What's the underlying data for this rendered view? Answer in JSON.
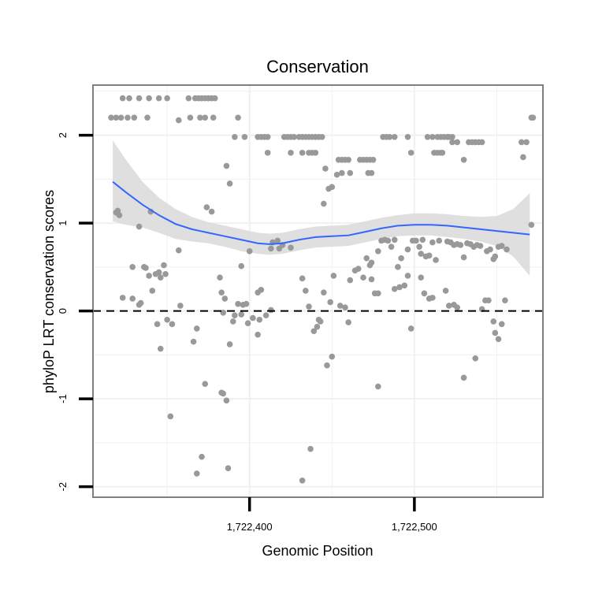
{
  "chart_data": {
    "type": "scatter",
    "title": "Conservation",
    "xlabel": "Genomic Position",
    "ylabel": "phyloP LRT conservation scores",
    "xlim": [
      1722305,
      1722578
    ],
    "ylim": [
      -2.12,
      2.57
    ],
    "x_ticks": [
      1722400,
      1722500
    ],
    "x_tick_labels": [
      "1,722,400",
      "1,722,500"
    ],
    "y_ticks": [
      -2,
      -1,
      0,
      1,
      2
    ],
    "y_tick_labels": [
      "-2",
      "-1",
      "0",
      "1",
      "2"
    ],
    "grid": true,
    "reference_line": {
      "y": 0,
      "style": "dashed"
    },
    "colors": {
      "points": "#999999",
      "smooth_line": "#3366FF",
      "ribbon": "#d9d9d9",
      "panel_border": "#7f7f7f",
      "grid": "#f0f0f0"
    },
    "points": [
      [
        1722316,
        2.2
      ],
      [
        1722319,
        2.2
      ],
      [
        1722322,
        2.2
      ],
      [
        1722326,
        2.2
      ],
      [
        1722330,
        2.2
      ],
      [
        1722323,
        2.42
      ],
      [
        1722327,
        2.42
      ],
      [
        1722333,
        2.42
      ],
      [
        1722339,
        2.42
      ],
      [
        1722345,
        2.42
      ],
      [
        1722350,
        2.42
      ],
      [
        1722363,
        2.42
      ],
      [
        1722367,
        2.42
      ],
      [
        1722369,
        2.42
      ],
      [
        1722371,
        2.42
      ],
      [
        1722373,
        2.42
      ],
      [
        1722375,
        2.42
      ],
      [
        1722377,
        2.42
      ],
      [
        1722379,
        2.42
      ],
      [
        1722338,
        2.2
      ],
      [
        1722357,
        2.17
      ],
      [
        1722364,
        2.2
      ],
      [
        1722370,
        2.2
      ],
      [
        1722373,
        2.2
      ],
      [
        1722378,
        2.2
      ],
      [
        1722393,
        2.2
      ],
      [
        1722391,
        1.98
      ],
      [
        1722397,
        1.98
      ],
      [
        1722405,
        1.98
      ],
      [
        1722407,
        1.98
      ],
      [
        1722409,
        1.98
      ],
      [
        1722411,
        1.98
      ],
      [
        1722421,
        1.98
      ],
      [
        1722423,
        1.98
      ],
      [
        1722425,
        1.98
      ],
      [
        1722427,
        1.98
      ],
      [
        1722430,
        1.98
      ],
      [
        1722432,
        1.98
      ],
      [
        1722434,
        1.98
      ],
      [
        1722436,
        1.98
      ],
      [
        1722438,
        1.98
      ],
      [
        1722440,
        1.98
      ],
      [
        1722442,
        1.98
      ],
      [
        1722444,
        1.98
      ],
      [
        1722411,
        1.8
      ],
      [
        1722425,
        1.8
      ],
      [
        1722432,
        1.8
      ],
      [
        1722436,
        1.8
      ],
      [
        1722438,
        1.8
      ],
      [
        1722440,
        1.8
      ],
      [
        1722446,
        1.62
      ],
      [
        1722454,
        1.72
      ],
      [
        1722456,
        1.72
      ],
      [
        1722458,
        1.72
      ],
      [
        1722460,
        1.72
      ],
      [
        1722467,
        1.72
      ],
      [
        1722469,
        1.72
      ],
      [
        1722471,
        1.72
      ],
      [
        1722473,
        1.72
      ],
      [
        1722475,
        1.72
      ],
      [
        1722453,
        1.55
      ],
      [
        1722456,
        1.57
      ],
      [
        1722461,
        1.57
      ],
      [
        1722472,
        1.57
      ],
      [
        1722474,
        1.57
      ],
      [
        1722481,
        1.98
      ],
      [
        1722483,
        1.98
      ],
      [
        1722485,
        1.98
      ],
      [
        1722488,
        1.98
      ],
      [
        1722496,
        1.98
      ],
      [
        1722508,
        1.98
      ],
      [
        1722511,
        1.98
      ],
      [
        1722514,
        1.98
      ],
      [
        1722516,
        1.98
      ],
      [
        1722518,
        1.98
      ],
      [
        1722520,
        1.98
      ],
      [
        1722521,
        1.98
      ],
      [
        1722523,
        1.98
      ],
      [
        1722498,
        1.8
      ],
      [
        1722512,
        1.8
      ],
      [
        1722514,
        1.8
      ],
      [
        1722516,
        1.8
      ],
      [
        1722517,
        1.8
      ],
      [
        1722523,
        1.92
      ],
      [
        1722526,
        1.92
      ],
      [
        1722533,
        1.92
      ],
      [
        1722535,
        1.92
      ],
      [
        1722537,
        1.92
      ],
      [
        1722539,
        1.92
      ],
      [
        1722541,
        1.92
      ],
      [
        1722530,
        1.72
      ],
      [
        1722565,
        1.92
      ],
      [
        1722568,
        1.92
      ],
      [
        1722566,
        1.75
      ],
      [
        1722571,
        2.2
      ],
      [
        1722572,
        2.2
      ],
      [
        1722571,
        0.98
      ],
      [
        1722319,
        1.12
      ],
      [
        1722320,
        1.14
      ],
      [
        1722321,
        1.09
      ],
      [
        1722329,
        0.5
      ],
      [
        1722333,
        0.96
      ],
      [
        1722336,
        0.5
      ],
      [
        1722337,
        0.49
      ],
      [
        1722340,
        1.13
      ],
      [
        1722377,
        1.13
      ],
      [
        1722374,
        1.18
      ],
      [
        1722386,
        1.65
      ],
      [
        1722388,
        1.45
      ],
      [
        1722395,
        0.51
      ],
      [
        1722400,
        0.68
      ],
      [
        1722405,
        0.21
      ],
      [
        1722407,
        0.24
      ],
      [
        1722413,
        0.71
      ],
      [
        1722414,
        0.78
      ],
      [
        1722417,
        0.8
      ],
      [
        1722418,
        0.71
      ],
      [
        1722420,
        0.75
      ],
      [
        1722425,
        0.72
      ],
      [
        1722445,
        1.22
      ],
      [
        1722448,
        1.39
      ],
      [
        1722450,
        1.41
      ],
      [
        1722461,
        0.35
      ],
      [
        1722464,
        0.46
      ],
      [
        1722466,
        0.48
      ],
      [
        1722469,
        0.38
      ],
      [
        1722471,
        0.6
      ],
      [
        1722473,
        0.52
      ],
      [
        1722474,
        0.55
      ],
      [
        1722478,
        0.68
      ],
      [
        1722480,
        0.8
      ],
      [
        1722482,
        0.81
      ],
      [
        1722484,
        0.8
      ],
      [
        1722486,
        0.73
      ],
      [
        1722488,
        0.81
      ],
      [
        1722490,
        0.5
      ],
      [
        1722492,
        0.6
      ],
      [
        1722494,
        0.29
      ],
      [
        1722496,
        0.7
      ],
      [
        1722499,
        0.8
      ],
      [
        1722501,
        0.8
      ],
      [
        1722503,
        0.73
      ],
      [
        1722504,
        0.65
      ],
      [
        1722505,
        0.81
      ],
      [
        1722507,
        0.62
      ],
      [
        1722509,
        0.63
      ],
      [
        1722511,
        0.78
      ],
      [
        1722513,
        0.58
      ],
      [
        1722515,
        0.8
      ],
      [
        1722520,
        0.79
      ],
      [
        1722522,
        0.78
      ],
      [
        1722524,
        0.75
      ],
      [
        1722526,
        0.76
      ],
      [
        1722528,
        0.75
      ],
      [
        1722530,
        0.61
      ],
      [
        1722532,
        0.77
      ],
      [
        1722534,
        0.76
      ],
      [
        1722536,
        0.73
      ],
      [
        1722538,
        0.75
      ],
      [
        1722540,
        0.74
      ],
      [
        1722544,
        0.68
      ],
      [
        1722546,
        0.7
      ],
      [
        1722548,
        0.59
      ],
      [
        1722549,
        0.62
      ],
      [
        1722551,
        0.73
      ],
      [
        1722553,
        0.74
      ],
      [
        1722556,
        0.7
      ],
      [
        1722323,
        0.15
      ],
      [
        1722329,
        0.14
      ],
      [
        1722333,
        0.07
      ],
      [
        1722334,
        0.09
      ],
      [
        1722339,
        0.4
      ],
      [
        1722341,
        0.23
      ],
      [
        1722343,
        0.42
      ],
      [
        1722345,
        0.44
      ],
      [
        1722346,
        0.38
      ],
      [
        1722348,
        0.52
      ],
      [
        1722349,
        0.42
      ],
      [
        1722344,
        -0.15
      ],
      [
        1722346,
        -0.43
      ],
      [
        1722350,
        -0.1
      ],
      [
        1722353,
        -0.15
      ],
      [
        1722357,
        0.69
      ],
      [
        1722358,
        0.06
      ],
      [
        1722366,
        -0.35
      ],
      [
        1722368,
        -0.2
      ],
      [
        1722382,
        0.38
      ],
      [
        1722383,
        0.21
      ],
      [
        1722384,
        -0.02
      ],
      [
        1722385,
        0.14
      ],
      [
        1722388,
        -0.38
      ],
      [
        1722390,
        -0.12
      ],
      [
        1722391,
        -0.05
      ],
      [
        1722393,
        0.08
      ],
      [
        1722395,
        -0.04
      ],
      [
        1722396,
        0.07
      ],
      [
        1722398,
        0.08
      ],
      [
        1722399,
        -0.14
      ],
      [
        1722402,
        -0.08
      ],
      [
        1722405,
        -0.27
      ],
      [
        1722406,
        -0.1
      ],
      [
        1722410,
        -0.05
      ],
      [
        1722413,
        0.01
      ],
      [
        1722432,
        0.37
      ],
      [
        1722434,
        0.23
      ],
      [
        1722436,
        0.05
      ],
      [
        1722439,
        -0.23
      ],
      [
        1722441,
        -0.18
      ],
      [
        1722442,
        -0.1
      ],
      [
        1722443,
        -0.12
      ],
      [
        1722445,
        0.21
      ],
      [
        1722449,
        0.1
      ],
      [
        1722451,
        0.4
      ],
      [
        1722455,
        0.06
      ],
      [
        1722458,
        0.04
      ],
      [
        1722447,
        -0.62
      ],
      [
        1722450,
        -0.52
      ],
      [
        1722460,
        -0.13
      ],
      [
        1722474,
        0.36
      ],
      [
        1722476,
        0.2
      ],
      [
        1722478,
        0.2
      ],
      [
        1722488,
        0.25
      ],
      [
        1722491,
        0.27
      ],
      [
        1722496,
        0.4
      ],
      [
        1722504,
        0.38
      ],
      [
        1722506,
        0.2
      ],
      [
        1722509,
        0.14
      ],
      [
        1722511,
        0.15
      ],
      [
        1722519,
        0.23
      ],
      [
        1722521,
        0.06
      ],
      [
        1722524,
        0.07
      ],
      [
        1722526,
        0.04
      ],
      [
        1722530,
        -0.76
      ],
      [
        1722537,
        -0.54
      ],
      [
        1722541,
        0.02
      ],
      [
        1722543,
        0.12
      ],
      [
        1722545,
        0.12
      ],
      [
        1722548,
        -0.12
      ],
      [
        1722549,
        -0.25
      ],
      [
        1722551,
        -0.32
      ],
      [
        1722553,
        -0.15
      ],
      [
        1722555,
        0.12
      ],
      [
        1722352,
        -1.2
      ],
      [
        1722368,
        -1.85
      ],
      [
        1722371,
        -1.66
      ],
      [
        1722373,
        -0.83
      ],
      [
        1722383,
        -0.93
      ],
      [
        1722384,
        -0.94
      ],
      [
        1722386,
        -1.02
      ],
      [
        1722387,
        -1.79
      ],
      [
        1722432,
        -1.93
      ],
      [
        1722437,
        -1.57
      ],
      [
        1722478,
        -0.86
      ],
      [
        1722498,
        -0.2
      ]
    ],
    "smooth_curve": [
      [
        1722317,
        1.47
      ],
      [
        1722325,
        1.35
      ],
      [
        1722335,
        1.21
      ],
      [
        1722345,
        1.09
      ],
      [
        1722355,
        0.99
      ],
      [
        1722365,
        0.93
      ],
      [
        1722375,
        0.89
      ],
      [
        1722385,
        0.85
      ],
      [
        1722395,
        0.81
      ],
      [
        1722405,
        0.77
      ],
      [
        1722412,
        0.76
      ],
      [
        1722420,
        0.77
      ],
      [
        1722430,
        0.81
      ],
      [
        1722440,
        0.84
      ],
      [
        1722450,
        0.85
      ],
      [
        1722460,
        0.86
      ],
      [
        1722470,
        0.9
      ],
      [
        1722480,
        0.94
      ],
      [
        1722490,
        0.97
      ],
      [
        1722500,
        0.98
      ],
      [
        1722510,
        0.98
      ],
      [
        1722520,
        0.97
      ],
      [
        1722530,
        0.95
      ],
      [
        1722540,
        0.93
      ],
      [
        1722550,
        0.91
      ],
      [
        1722560,
        0.89
      ],
      [
        1722570,
        0.87
      ]
    ],
    "ribbon_upper": [
      [
        1722317,
        1.94
      ],
      [
        1722325,
        1.72
      ],
      [
        1722335,
        1.47
      ],
      [
        1722345,
        1.29
      ],
      [
        1722355,
        1.16
      ],
      [
        1722365,
        1.07
      ],
      [
        1722375,
        1.01
      ],
      [
        1722385,
        0.97
      ],
      [
        1722395,
        0.93
      ],
      [
        1722405,
        0.89
      ],
      [
        1722412,
        0.88
      ],
      [
        1722420,
        0.89
      ],
      [
        1722430,
        0.93
      ],
      [
        1722440,
        0.96
      ],
      [
        1722450,
        0.97
      ],
      [
        1722460,
        0.98
      ],
      [
        1722470,
        1.02
      ],
      [
        1722480,
        1.06
      ],
      [
        1722490,
        1.09
      ],
      [
        1722500,
        1.11
      ],
      [
        1722510,
        1.11
      ],
      [
        1722520,
        1.1
      ],
      [
        1722530,
        1.08
      ],
      [
        1722540,
        1.07
      ],
      [
        1722550,
        1.08
      ],
      [
        1722560,
        1.16
      ],
      [
        1722570,
        1.34
      ]
    ],
    "ribbon_lower": [
      [
        1722317,
        1.02
      ],
      [
        1722325,
        0.98
      ],
      [
        1722335,
        0.95
      ],
      [
        1722345,
        0.89
      ],
      [
        1722355,
        0.82
      ],
      [
        1722365,
        0.79
      ],
      [
        1722375,
        0.77
      ],
      [
        1722385,
        0.73
      ],
      [
        1722395,
        0.68
      ],
      [
        1722405,
        0.65
      ],
      [
        1722412,
        0.64
      ],
      [
        1722420,
        0.65
      ],
      [
        1722430,
        0.69
      ],
      [
        1722440,
        0.72
      ],
      [
        1722450,
        0.73
      ],
      [
        1722460,
        0.74
      ],
      [
        1722470,
        0.78
      ],
      [
        1722480,
        0.82
      ],
      [
        1722490,
        0.85
      ],
      [
        1722500,
        0.86
      ],
      [
        1722510,
        0.86
      ],
      [
        1722520,
        0.84
      ],
      [
        1722530,
        0.82
      ],
      [
        1722540,
        0.79
      ],
      [
        1722550,
        0.74
      ],
      [
        1722560,
        0.62
      ],
      [
        1722570,
        0.4
      ]
    ]
  }
}
